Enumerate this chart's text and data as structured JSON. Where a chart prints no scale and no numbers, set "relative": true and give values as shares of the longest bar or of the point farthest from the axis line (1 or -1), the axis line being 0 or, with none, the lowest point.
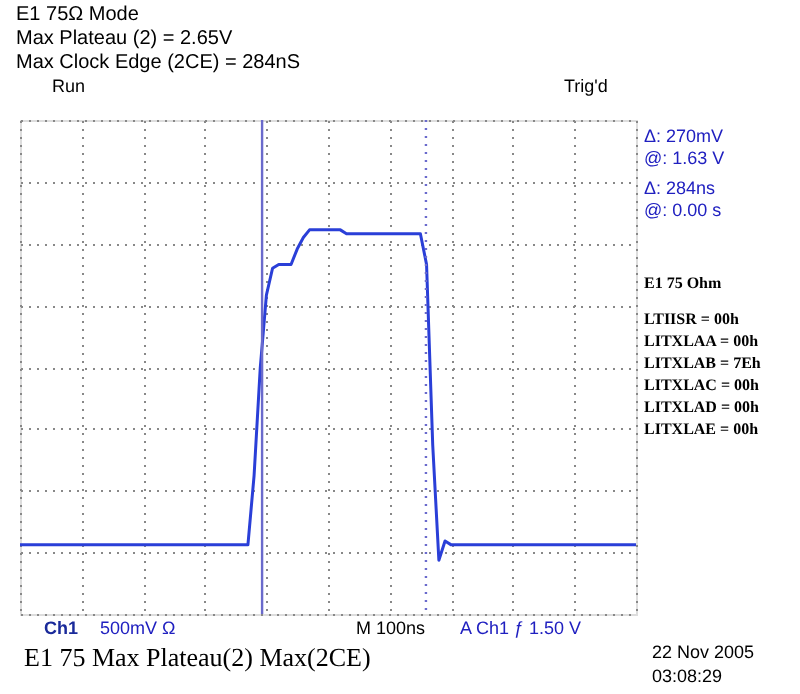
{
  "chart_data": {
    "type": "line",
    "relative": true,
    "title": "E1 75Ω Mode",
    "categories": [
      null,
      null,
      null,
      null,
      null,
      null,
      null,
      null,
      null,
      null,
      null,
      null,
      null,
      null,
      null,
      null,
      null,
      null,
      null,
      null,
      null,
      null,
      null,
      null,
      null,
      null,
      null,
      null,
      null,
      null,
      null,
      null,
      null,
      null,
      null,
      null,
      null,
      null,
      null,
      null,
      null,
      null,
      null,
      null,
      null,
      null,
      null,
      null,
      null,
      null,
      null,
      null,
      null,
      null,
      null,
      null,
      null,
      null,
      null,
      null,
      null,
      null,
      null,
      null,
      null,
      null,
      null,
      null,
      null,
      null,
      null,
      null,
      null,
      null,
      null,
      null,
      null,
      null,
      null,
      null,
      null,
      null,
      null,
      null,
      null,
      null,
      null,
      null,
      null,
      null,
      null,
      null,
      null,
      null,
      null,
      null,
      null,
      null,
      null,
      null,
      null
    ],
    "series": [
      {
        "color": "#2a3fd8",
        "values": [
          0.18,
          0.18,
          0.18,
          0.18,
          0.18,
          0.18,
          0.18,
          0.18,
          0.18,
          0.18,
          0.18,
          0.18,
          0.18,
          0.18,
          0.18,
          0.18,
          0.18,
          0.18,
          0.18,
          0.18,
          0.18,
          0.18,
          0.18,
          0.18,
          0.18,
          0.18,
          0.18,
          0.18,
          0.18,
          0.18,
          0.18,
          0.18,
          0.18,
          0.18,
          0.18,
          0.18,
          0.18,
          0.18,
          0.36,
          0.64,
          0.83,
          0.9,
          0.91,
          0.91,
          0.91,
          0.95,
          0.98,
          1.0,
          1.0,
          1.0,
          1.0,
          1.0,
          1.0,
          0.99,
          0.99,
          0.99,
          0.99,
          0.99,
          0.99,
          0.99,
          0.99,
          0.99,
          0.99,
          0.99,
          0.99,
          0.99,
          0.91,
          0.44,
          0.14,
          0.19,
          0.18,
          0.18,
          0.18,
          0.18,
          0.18,
          0.18,
          0.18,
          0.18,
          0.18,
          0.18,
          0.18,
          0.18,
          0.18,
          0.18,
          0.18,
          0.18,
          0.18,
          0.18,
          0.18,
          0.18,
          0.18,
          0.18,
          0.18,
          0.18,
          0.18,
          0.18,
          0.18,
          0.18,
          0.18,
          0.18,
          0.18
        ]
      }
    ],
    "grid": true,
    "marker": "none",
    "line_style": "solid",
    "annotations": [
      "Max Plateau (2) = 2.65V",
      "Max Clock Edge (2CE) = 284nS",
      "Run",
      "Trig'd",
      "Δ:  270mV",
      "@:   1.63 V",
      "Δ:   284ns",
      "@:   0.00 s",
      "E1 75 Ohm",
      "LTIISR = 00h",
      "LITXLAA = 00h",
      "LITXLAB = 7Eh",
      "LITXLAC = 00h",
      "LITXLAD = 00h",
      "LITXLAE = 00h",
      "Ch1",
      "500mV Ω",
      "M 100ns",
      "A  Ch1  ƒ   1.50 V",
      "E1 75 Max Plateau(2)  Max(2CE)",
      "22 Nov 2005",
      "03:08:29"
    ]
  }
}
